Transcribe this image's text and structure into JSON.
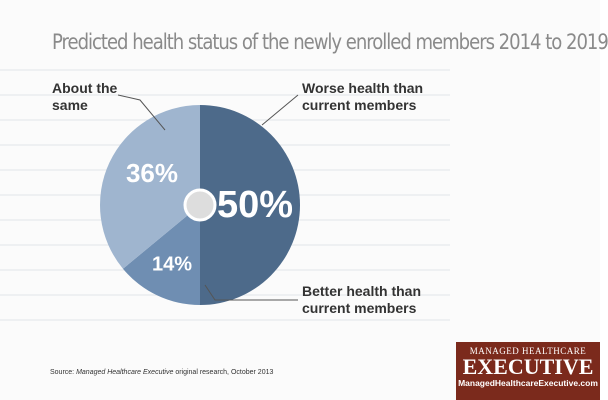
{
  "chart_data": {
    "type": "pie",
    "title": "Predicted health status of the newly enrolled members 2014 to 2019",
    "categories": [
      "Worse health than current members",
      "Better health than current members",
      "About the same"
    ],
    "values": [
      50,
      14,
      36
    ],
    "value_labels": [
      "50%",
      "14%",
      "36%"
    ],
    "colors": [
      "#4d6a8a",
      "#6f8eb2",
      "#9fb5cf"
    ],
    "source": {
      "prefix": "Source:",
      "publication": "Managed Healthcare Executive",
      "rest": "original research, October 2013"
    }
  },
  "logo": {
    "top": "Managed Healthcare",
    "main": "Executive",
    "url": "ManagedHealthcareExecutive.com"
  }
}
